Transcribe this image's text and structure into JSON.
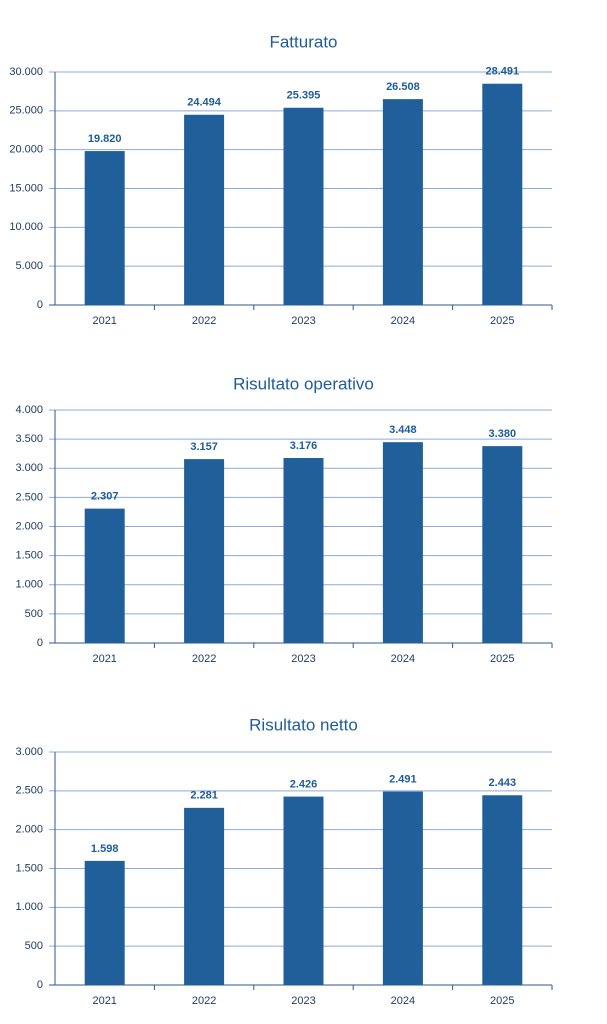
{
  "chart_data": [
    {
      "type": "bar",
      "title": "Fatturato",
      "color": "#215f9a",
      "grid": true,
      "categories": [
        "2021",
        "2022",
        "2023",
        "2024",
        "2025"
      ],
      "values": [
        19820,
        24494,
        25395,
        26508,
        28491
      ],
      "value_labels": [
        "19.820",
        "24.494",
        "25.395",
        "26.508",
        "28.491"
      ],
      "ylim": [
        0,
        30000
      ],
      "yticks": [
        0,
        {
          "value": 5000,
          "label": "5.000"
        },
        {
          "value": 10000,
          "label": "10.000"
        },
        {
          "value": 15000,
          "label": "15.000"
        },
        {
          "value": 20000,
          "label": "20.000"
        },
        {
          "value": 25000,
          "label": "25.000"
        },
        {
          "value": 30000,
          "label": "30.000"
        }
      ]
    },
    {
      "type": "bar",
      "title": "Risultato operativo",
      "color": "#215f9a",
      "grid": true,
      "categories": [
        "2021",
        "2022",
        "2023",
        "2024",
        "2025"
      ],
      "values": [
        2307,
        3157,
        3176,
        3448,
        3380
      ],
      "value_labels": [
        "2.307",
        "3.157",
        "3.176",
        "3.448",
        "3.380"
      ],
      "ylim": [
        0,
        4000
      ],
      "yticks": [
        0,
        500,
        {
          "value": 1000,
          "label": "1.000"
        },
        {
          "value": 1500,
          "label": "1.500"
        },
        {
          "value": 2000,
          "label": "2.000"
        },
        {
          "value": 2500,
          "label": "2.500"
        },
        {
          "value": 3000,
          "label": "3.000"
        },
        {
          "value": 3500,
          "label": "3.500"
        },
        {
          "value": 4000,
          "label": "4.000"
        }
      ]
    },
    {
      "type": "bar",
      "title": "Risultato netto",
      "color": "#215f9a",
      "grid": true,
      "categories": [
        "2021",
        "2022",
        "2023",
        "2024",
        "2025"
      ],
      "values": [
        1598,
        2281,
        2426,
        2491,
        2443
      ],
      "value_labels": [
        "1.598",
        "2.281",
        "2.426",
        "2.491",
        "2.443"
      ],
      "ylim": [
        0,
        3000
      ],
      "yticks": [
        0,
        500,
        {
          "value": 1000,
          "label": "1.000"
        },
        {
          "value": 1500,
          "label": "1.500"
        },
        {
          "value": 2000,
          "label": "2.000"
        },
        {
          "value": 2500,
          "label": "2.500"
        },
        {
          "value": 3000,
          "label": "3.000"
        }
      ]
    }
  ]
}
